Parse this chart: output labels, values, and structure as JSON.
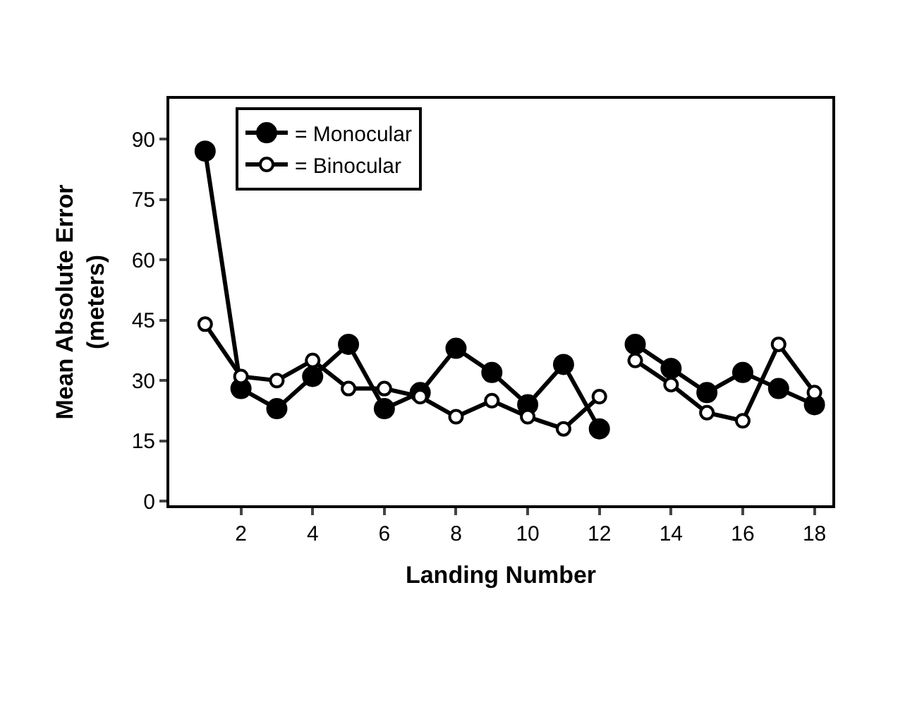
{
  "chart_data": {
    "type": "line",
    "xlabel": "Landing Number",
    "ylabel": "Mean Absolute Error\n(meters)",
    "x": [
      1,
      2,
      3,
      4,
      5,
      6,
      7,
      8,
      9,
      10,
      11,
      12,
      12.5,
      13,
      14,
      15,
      16,
      17,
      18
    ],
    "series": [
      {
        "name": "= Monocular",
        "color": "#000000",
        "values": [
          87,
          28,
          23,
          31,
          39,
          23,
          27,
          38,
          32,
          24,
          34,
          18,
          null,
          39,
          33,
          27,
          32,
          28,
          24
        ]
      },
      {
        "name": "= Binocular",
        "color": "#000000",
        "values": [
          44,
          31,
          30,
          35,
          28,
          28,
          26,
          21,
          25,
          21,
          18,
          26,
          null,
          35,
          29,
          22,
          20,
          39,
          27
        ]
      }
    ],
    "xlim": [
      0,
      18.5
    ],
    "xticks": [
      2,
      4,
      6,
      8,
      10,
      12,
      14,
      16,
      18
    ],
    "ylim": [
      -1,
      100
    ],
    "yticks": [
      0,
      15,
      30,
      45,
      60,
      75,
      90
    ],
    "legend": "top left",
    "marker": "circle",
    "line_style": "solid"
  }
}
